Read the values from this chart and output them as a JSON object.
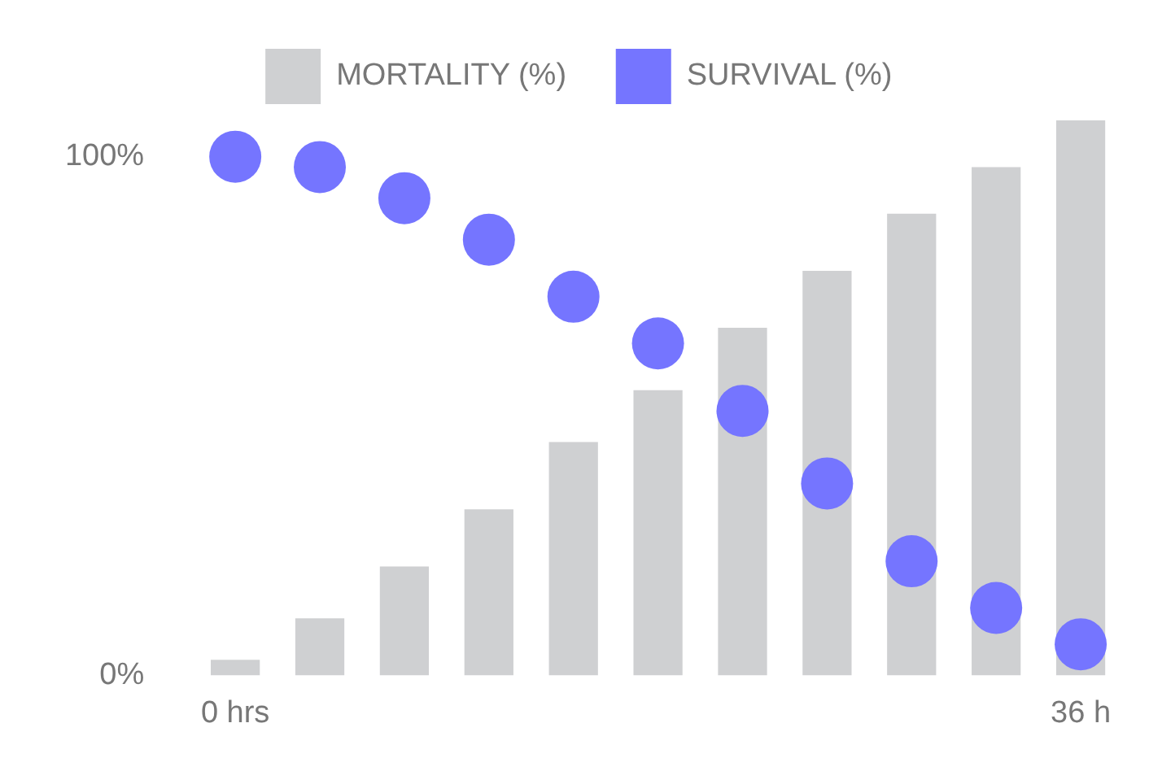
{
  "chart_data": {
    "type": "bar",
    "categories": [
      "0 hrs",
      null,
      null,
      null,
      null,
      null,
      null,
      null,
      null,
      null,
      "36 h"
    ],
    "series": [
      {
        "name": "MORTALITY (%)",
        "color": "#cfd0d2",
        "values": [
          3,
          11,
          21,
          32,
          45,
          55,
          67,
          78,
          89,
          98,
          107
        ]
      },
      {
        "name": "SURVIVAL (%)",
        "type": "scatter",
        "color": "#7575ff",
        "values": [
          100,
          98,
          92,
          84,
          73,
          64,
          51,
          37,
          22,
          13,
          6
        ]
      }
    ],
    "ylim": [
      0,
      107
    ],
    "yticks": [
      {
        "value": 0,
        "label": "0%"
      },
      {
        "value": 100,
        "label": "100%"
      }
    ],
    "grid": false,
    "legend": "top",
    "marker": "circle"
  }
}
